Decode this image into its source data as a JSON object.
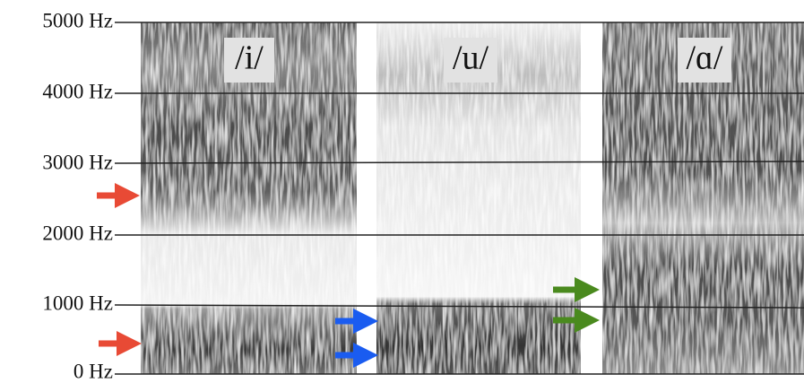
{
  "y_axis": {
    "labels": [
      "5000 Hz",
      "4000 Hz",
      "3000 Hz",
      "2000 Hz",
      "1000 Hz",
      "0 Hz"
    ]
  },
  "vowels": [
    "/i/",
    "/u/",
    "/ɑ/"
  ]
}
